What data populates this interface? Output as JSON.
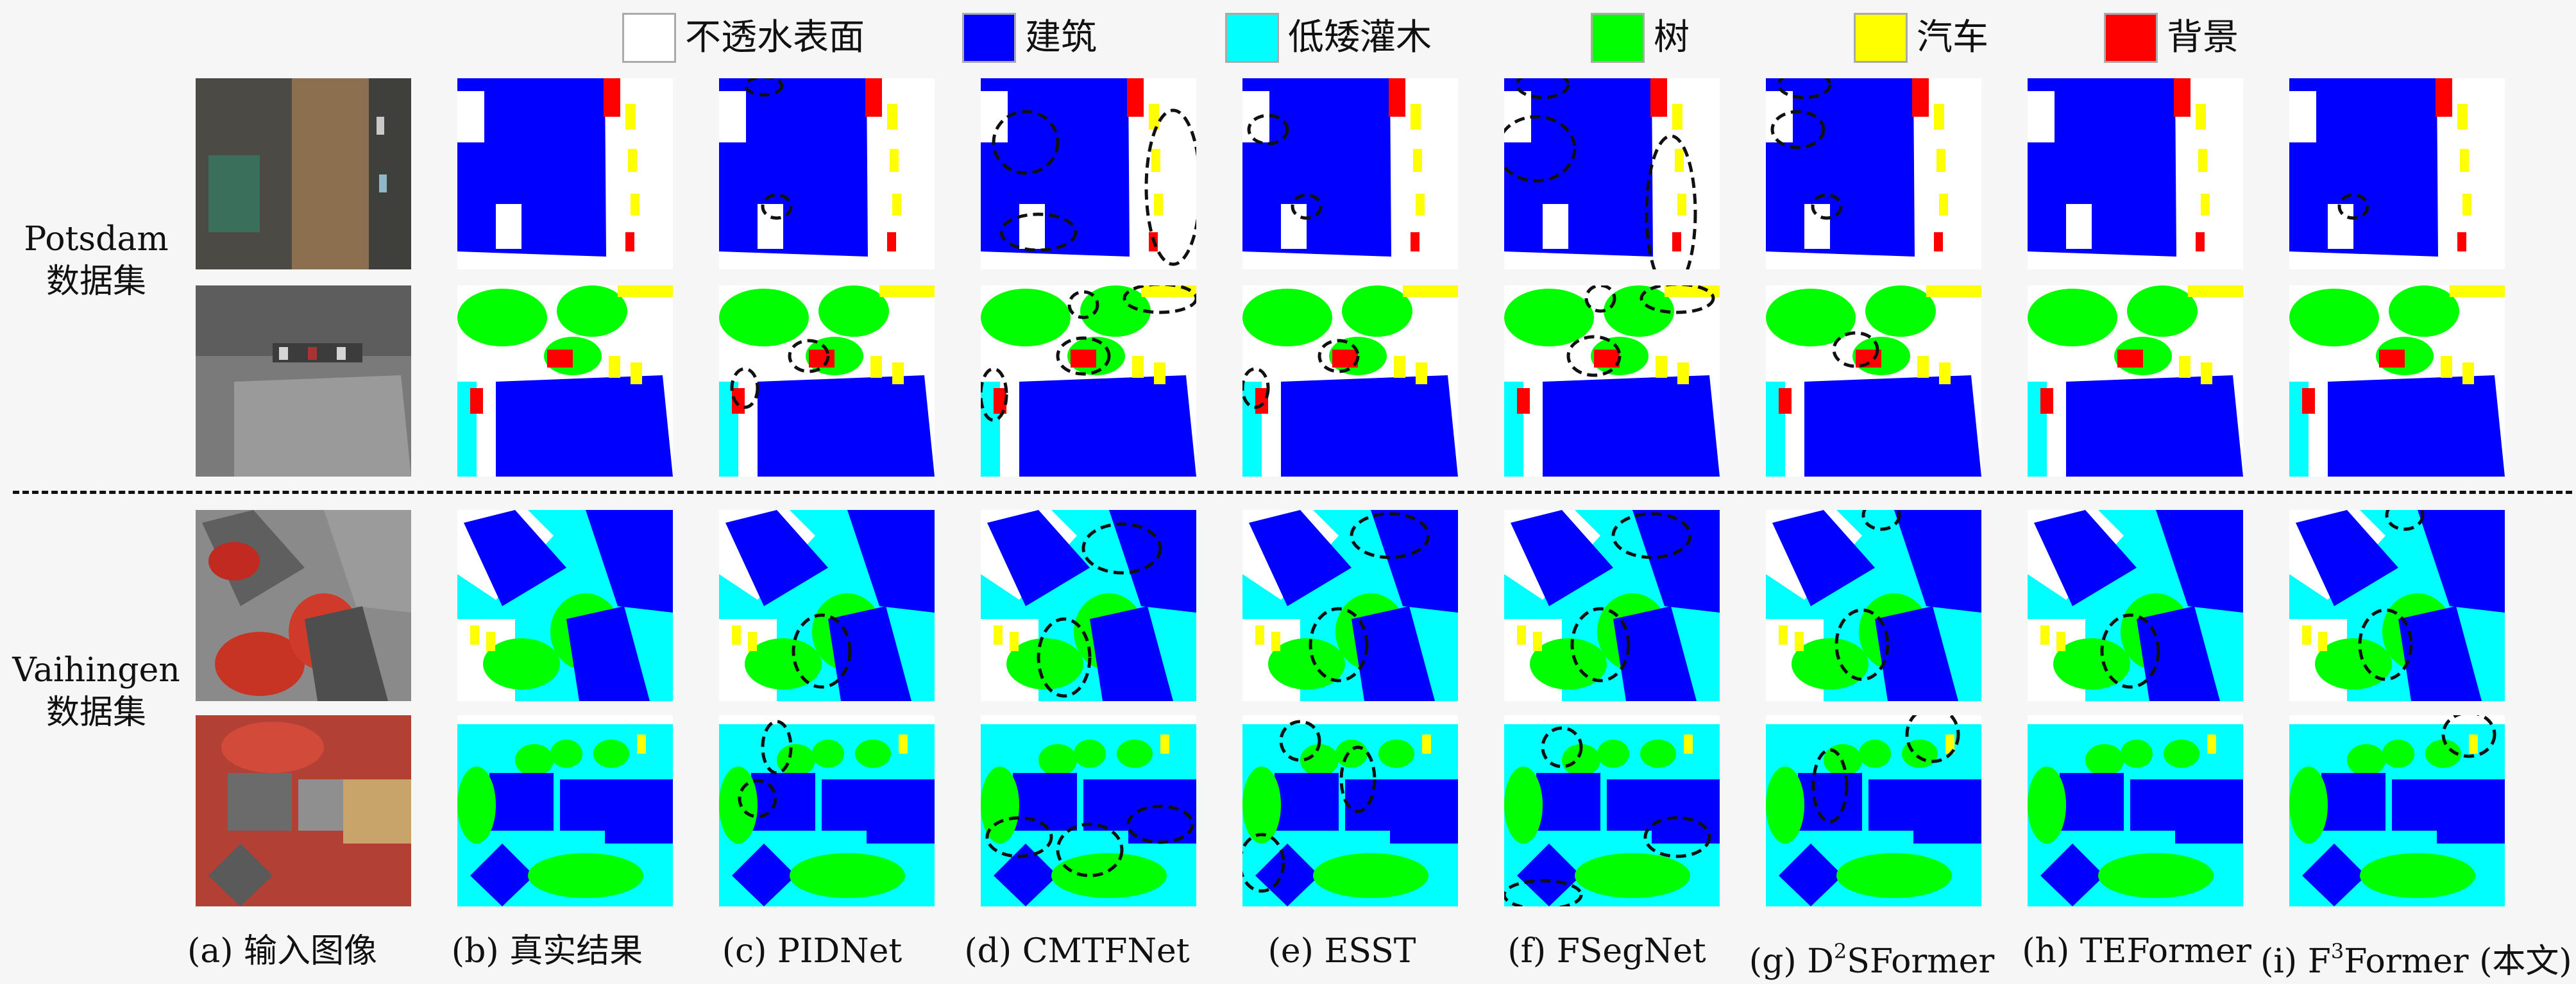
{
  "legend": [
    {
      "label": "不透水表面",
      "color": "#ffffff"
    },
    {
      "label": "建筑",
      "color": "#0000ff"
    },
    {
      "label": "低矮灌木",
      "color": "#00ffff"
    },
    {
      "label": "树",
      "color": "#00ff00"
    },
    {
      "label": "汽车",
      "color": "#ffff00"
    },
    {
      "label": "背景",
      "color": "#ff0000"
    }
  ],
  "groups": {
    "potsdam": {
      "name": "Potsdam",
      "suffix": "数据集"
    },
    "vaihingen": {
      "name": "Vaihingen",
      "suffix": "数据集"
    }
  },
  "columns": [
    {
      "tag": "(a)",
      "name": "输入图像"
    },
    {
      "tag": "(b)",
      "name": "真实结果"
    },
    {
      "tag": "(c)",
      "name": "PIDNet"
    },
    {
      "tag": "(d)",
      "name": "CMTFNet"
    },
    {
      "tag": "(e)",
      "name": "ESST"
    },
    {
      "tag": "(f)",
      "name": "FSegNet"
    },
    {
      "tag": "(g)",
      "pre": "D",
      "sup": "2",
      "post": "SFormer"
    },
    {
      "tag": "(h)",
      "name": "TEFormer"
    },
    {
      "tag": "(i)",
      "pre": "F",
      "sup": "3",
      "post": "Former (本文)"
    }
  ]
}
